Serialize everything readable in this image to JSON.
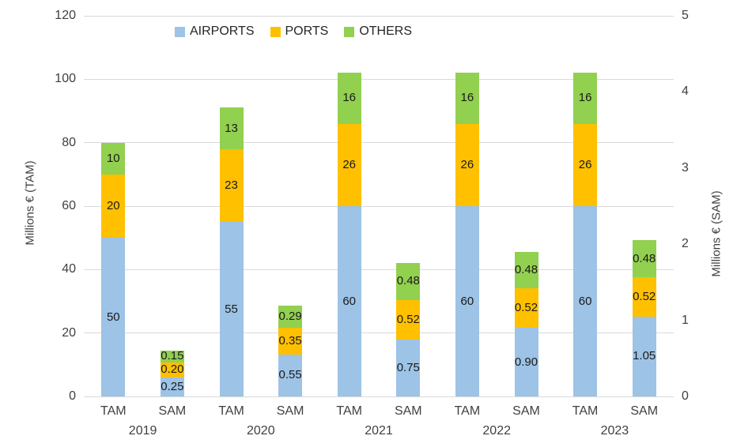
{
  "chart_data": {
    "type": "bar",
    "stacked": true,
    "grid": true,
    "legend": {
      "position": "top",
      "entries": [
        {
          "label": "AIRPORTS",
          "color": "#9DC3E6"
        },
        {
          "label": "PORTS",
          "color": "#FFC000"
        },
        {
          "label": "OTHERS",
          "color": "#92D050"
        }
      ]
    },
    "left_axis": {
      "label": "Millions € (TAM)",
      "min": 0,
      "max": 120,
      "ticks": [
        0,
        20,
        40,
        60,
        80,
        100,
        120
      ]
    },
    "right_axis": {
      "label": "Millions € (SAM)",
      "min": 0,
      "max": 5,
      "ticks": [
        0,
        1,
        2,
        3,
        4,
        5
      ]
    },
    "series_order": [
      "AIRPORTS",
      "PORTS",
      "OTHERS"
    ],
    "years": [
      "2019",
      "2020",
      "2021",
      "2022",
      "2023"
    ],
    "bars": [
      {
        "year": "2019",
        "category": "TAM",
        "axis": "left",
        "segments": [
          {
            "series": "AIRPORTS",
            "value": 50,
            "label": "50"
          },
          {
            "series": "PORTS",
            "value": 20,
            "label": "20"
          },
          {
            "series": "OTHERS",
            "value": 10,
            "label": "10"
          }
        ]
      },
      {
        "year": "2019",
        "category": "SAM",
        "axis": "right",
        "segments": [
          {
            "series": "AIRPORTS",
            "value": 0.25,
            "label": "0.25"
          },
          {
            "series": "PORTS",
            "value": 0.2,
            "label": "0.20"
          },
          {
            "series": "OTHERS",
            "value": 0.15,
            "label": "0.15"
          }
        ]
      },
      {
        "year": "2020",
        "category": "TAM",
        "axis": "left",
        "segments": [
          {
            "series": "AIRPORTS",
            "value": 55,
            "label": "55"
          },
          {
            "series": "PORTS",
            "value": 23,
            "label": "23"
          },
          {
            "series": "OTHERS",
            "value": 13,
            "label": "13"
          }
        ]
      },
      {
        "year": "2020",
        "category": "SAM",
        "axis": "right",
        "segments": [
          {
            "series": "AIRPORTS",
            "value": 0.55,
            "label": "0.55"
          },
          {
            "series": "PORTS",
            "value": 0.35,
            "label": "0.35"
          },
          {
            "series": "OTHERS",
            "value": 0.29,
            "label": "0.29"
          }
        ]
      },
      {
        "year": "2021",
        "category": "TAM",
        "axis": "left",
        "segments": [
          {
            "series": "AIRPORTS",
            "value": 60,
            "label": "60"
          },
          {
            "series": "PORTS",
            "value": 26,
            "label": "26"
          },
          {
            "series": "OTHERS",
            "value": 16,
            "label": "16"
          }
        ]
      },
      {
        "year": "2021",
        "category": "SAM",
        "axis": "right",
        "segments": [
          {
            "series": "AIRPORTS",
            "value": 0.75,
            "label": "0.75"
          },
          {
            "series": "PORTS",
            "value": 0.52,
            "label": "0.52"
          },
          {
            "series": "OTHERS",
            "value": 0.48,
            "label": "0.48"
          }
        ]
      },
      {
        "year": "2022",
        "category": "TAM",
        "axis": "left",
        "segments": [
          {
            "series": "AIRPORTS",
            "value": 60,
            "label": "60"
          },
          {
            "series": "PORTS",
            "value": 26,
            "label": "26"
          },
          {
            "series": "OTHERS",
            "value": 16,
            "label": "16"
          }
        ]
      },
      {
        "year": "2022",
        "category": "SAM",
        "axis": "right",
        "segments": [
          {
            "series": "AIRPORTS",
            "value": 0.9,
            "label": "0.90"
          },
          {
            "series": "PORTS",
            "value": 0.52,
            "label": "0.52"
          },
          {
            "series": "OTHERS",
            "value": 0.48,
            "label": "0.48"
          }
        ]
      },
      {
        "year": "2023",
        "category": "TAM",
        "axis": "left",
        "segments": [
          {
            "series": "AIRPORTS",
            "value": 60,
            "label": "60"
          },
          {
            "series": "PORTS",
            "value": 26,
            "label": "26"
          },
          {
            "series": "OTHERS",
            "value": 16,
            "label": "16"
          }
        ]
      },
      {
        "year": "2023",
        "category": "SAM",
        "axis": "right",
        "segments": [
          {
            "series": "AIRPORTS",
            "value": 1.05,
            "label": "1.05"
          },
          {
            "series": "PORTS",
            "value": 0.52,
            "label": "0.52"
          },
          {
            "series": "OTHERS",
            "value": 0.48,
            "label": "0.48"
          }
        ]
      }
    ],
    "colors": {
      "AIRPORTS": "#9DC3E6",
      "PORTS": "#FFC000",
      "OTHERS": "#92D050",
      "gridline": "#D9D9D9",
      "tick_text": "#404040",
      "data_label": "#1A1A1A"
    }
  }
}
